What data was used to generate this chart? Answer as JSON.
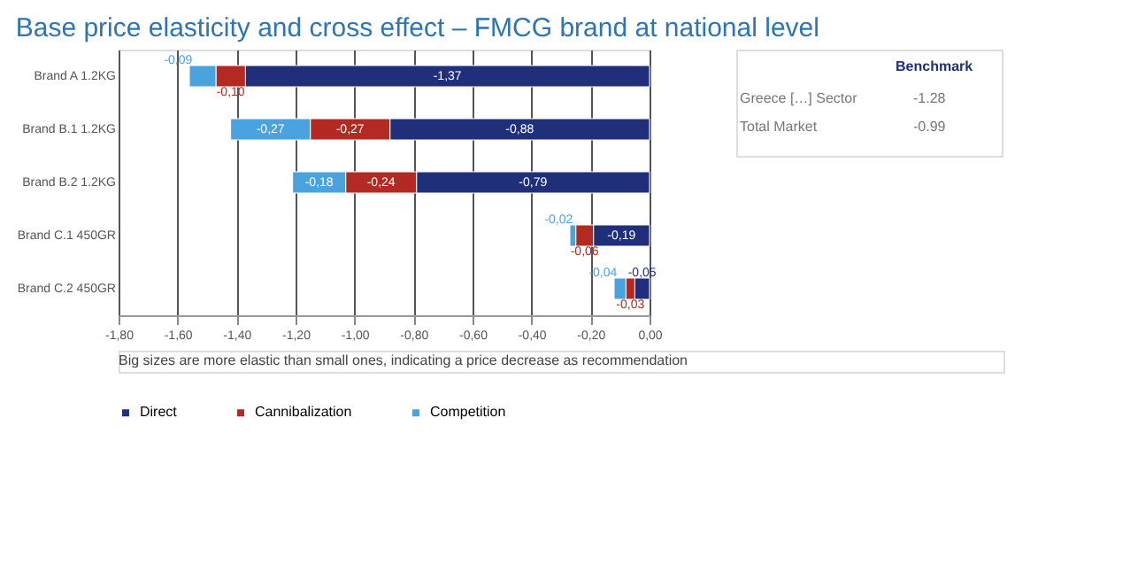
{
  "chart_data": {
    "type": "bar",
    "orientation": "horizontal",
    "stacked": true,
    "title": "Base price elasticity and cross effect – FMCG brand at national level",
    "categories": [
      "Brand A 1.2KG",
      "Brand B.1 1.2KG",
      "Brand B.2 1.2KG",
      "Brand C.1 450GR",
      "Brand C.2 450GR"
    ],
    "series": [
      {
        "name": "Direct",
        "color": "#1f2f7a",
        "values": [
          -1.37,
          -0.88,
          -0.79,
          -0.19,
          -0.05
        ],
        "value_labels": [
          "-1,37",
          "-0,88",
          "-0,79",
          "-0,19",
          "-0,05"
        ]
      },
      {
        "name": "Cannibalization",
        "color": "#b22a22",
        "values": [
          -0.1,
          -0.27,
          -0.24,
          -0.06,
          -0.03
        ],
        "value_labels": [
          "-0,10",
          "-0,27",
          "-0,24",
          "-0,06",
          "-0,03"
        ]
      },
      {
        "name": "Competition",
        "color": "#4aa3df",
        "values": [
          -0.09,
          -0.27,
          -0.18,
          -0.02,
          -0.04
        ],
        "value_labels": [
          "-0,09",
          "-0,27",
          "-0,18",
          "-0,02",
          "-0,04"
        ]
      }
    ],
    "xlim": [
      -1.8,
      0
    ],
    "xticks": [
      {
        "value": -1.8,
        "label": "-1,80"
      },
      {
        "value": -1.6,
        "label": "-1,60"
      },
      {
        "value": -1.4,
        "label": "-1,40"
      },
      {
        "value": -1.2,
        "label": "-1,20"
      },
      {
        "value": -1.0,
        "label": "-1,00"
      },
      {
        "value": -0.8,
        "label": "-0,80"
      },
      {
        "value": -0.6,
        "label": "-0,60"
      },
      {
        "value": -0.4,
        "label": "-0,40"
      },
      {
        "value": -0.2,
        "label": "-0,20"
      },
      {
        "value": 0,
        "label": "0,00"
      }
    ],
    "grid": "x",
    "legend": "bottom",
    "annotations": [
      "Benchmark",
      "Greece […] Sector",
      "-1.28",
      "Total Market",
      "-0.99",
      "Big sizes are more elastic than small ones, indicating a price decrease as recommendation"
    ]
  }
}
